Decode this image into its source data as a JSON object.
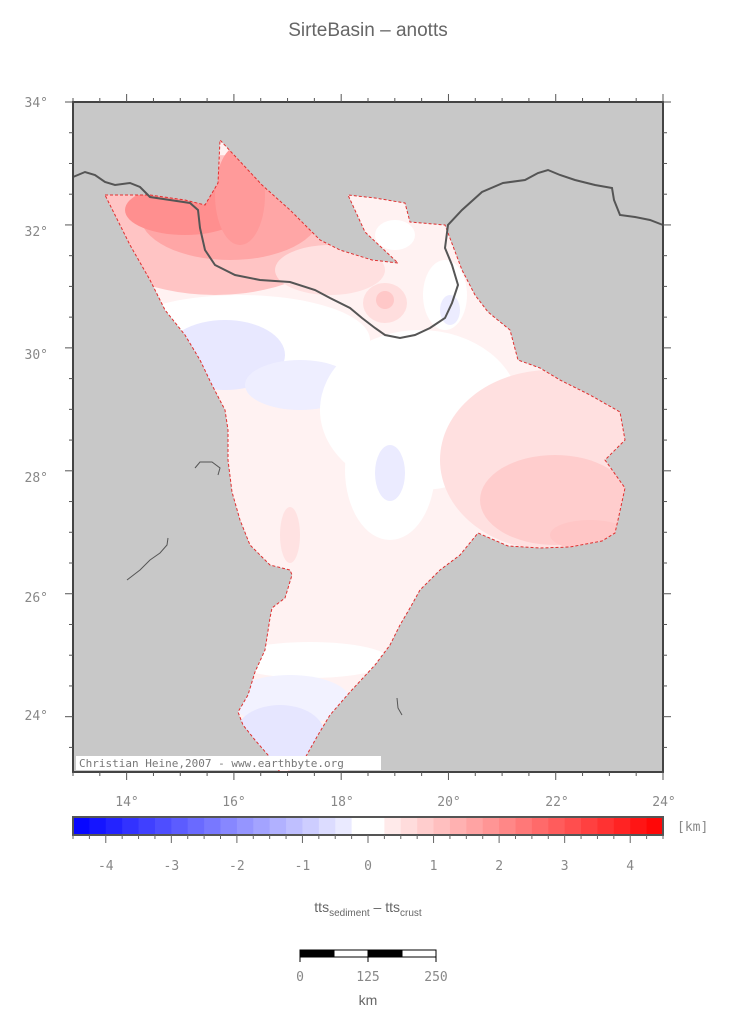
{
  "title": "SirteBasin – anotts",
  "map": {
    "lat_labels": [
      "34°",
      "32°",
      "30°",
      "28°",
      "26°",
      "24°"
    ],
    "lon_labels": [
      "14°",
      "16°",
      "18°",
      "20°",
      "22°",
      "24°"
    ],
    "credit": "Christian Heine,2007 - www.earthbyte.org",
    "background_color": "#c8c8c8",
    "coastline_color": "#555555",
    "outline_color": "#e03030"
  },
  "colorbar": {
    "unit": "[km]",
    "tick_labels": [
      "-4",
      "-3",
      "-2",
      "-1",
      "0",
      "1",
      "2",
      "3",
      "4"
    ],
    "range": [
      -4.5,
      4.5
    ],
    "negative_color": "#0000ff",
    "positive_color": "#ff0000"
  },
  "variable_label": {
    "part1": "tts",
    "sub1": "sediment",
    "sep": " – ",
    "part2": "tts",
    "sub2": "crust"
  },
  "scalebar": {
    "labels": [
      "0",
      "125",
      "250"
    ],
    "unit": "km"
  }
}
